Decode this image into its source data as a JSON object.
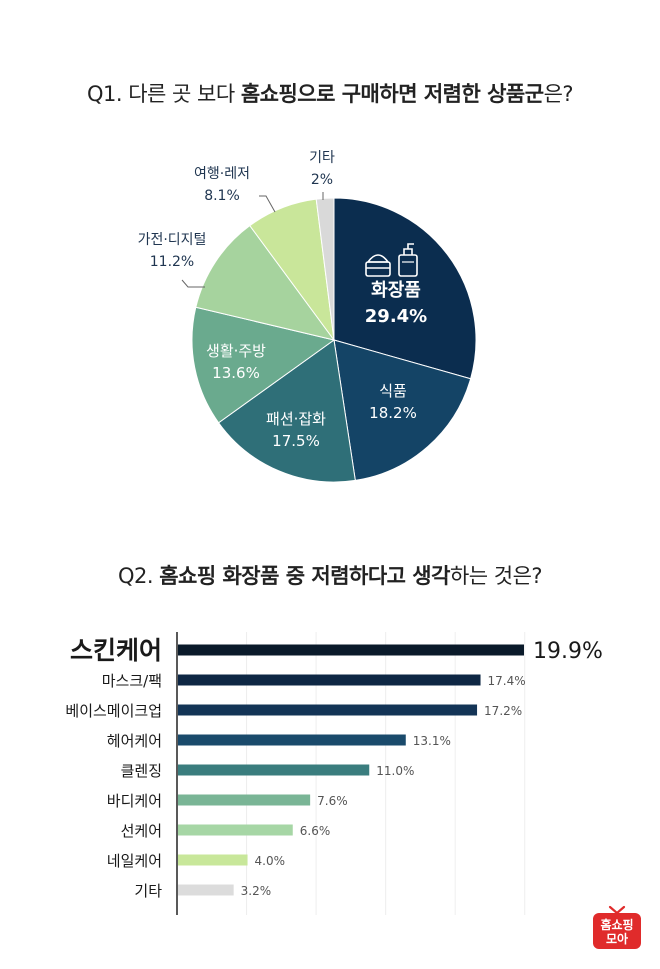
{
  "q1": {
    "prefix": "Q1. 다른 곳 보다 ",
    "bold": "홈쇼핑으로 구매하면 저렴한 상품군",
    "suffix": "은?"
  },
  "q2": {
    "prefix": "Q2. ",
    "bold1": "홈쇼핑 화장품 중 저렴하다고 생각",
    "suffix": "하는 것은?"
  },
  "chart_data": [
    {
      "type": "pie",
      "title": "Q1. 다른 곳 보다 홈쇼핑으로 구매하면 저렴한 상품군은?",
      "slices": [
        {
          "label": "화장품",
          "value": 29.4,
          "value_label": "29.4%",
          "color": "#0b2d4f"
        },
        {
          "label": "식품",
          "value": 18.2,
          "value_label": "18.2%",
          "color": "#144466"
        },
        {
          "label": "패션·잡화",
          "value": 17.5,
          "value_label": "17.5%",
          "color": "#2f6f78"
        },
        {
          "label": "생활·주방",
          "value": 13.6,
          "value_label": "13.6%",
          "color": "#6aaa8e"
        },
        {
          "label": "가전·디지털",
          "value": 11.2,
          "value_label": "11.2%",
          "color": "#a6d39e"
        },
        {
          "label": "여행·레저",
          "value": 8.1,
          "value_label": "8.1%",
          "color": "#c9e69a"
        },
        {
          "label": "기타",
          "value": 2,
          "value_label": "2%",
          "color": "#d9d9d9"
        }
      ]
    },
    {
      "type": "bar",
      "orientation": "horizontal",
      "title": "Q2. 홈쇼핑 화장품 중 저렴하다고 생각하는 것은?",
      "categories": [
        "스킨케어",
        "마스크/팩",
        "베이스메이크업",
        "헤어케어",
        "클렌징",
        "바디케어",
        "선케어",
        "네일케어",
        "기타"
      ],
      "values": [
        19.9,
        17.4,
        17.2,
        13.1,
        11.0,
        7.6,
        6.6,
        4.0,
        3.2
      ],
      "value_labels": [
        "19.9%",
        "17.4%",
        "17.2%",
        "13.1%",
        "11.0%",
        "7.6%",
        "6.6%",
        "4.0%",
        "3.2%"
      ],
      "colors": [
        "#0a1a2a",
        "#0e2744",
        "#133456",
        "#1a4a6b",
        "#3a7d7e",
        "#7ab596",
        "#a6d6a5",
        "#c8e79a",
        "#dcdcdc"
      ],
      "xlim": [
        0,
        20
      ],
      "grid": true
    }
  ],
  "logo": {
    "line1": "홈쇼핑",
    "line2": "모아",
    "icon": "tv-icon",
    "color": "#e02b2b"
  }
}
